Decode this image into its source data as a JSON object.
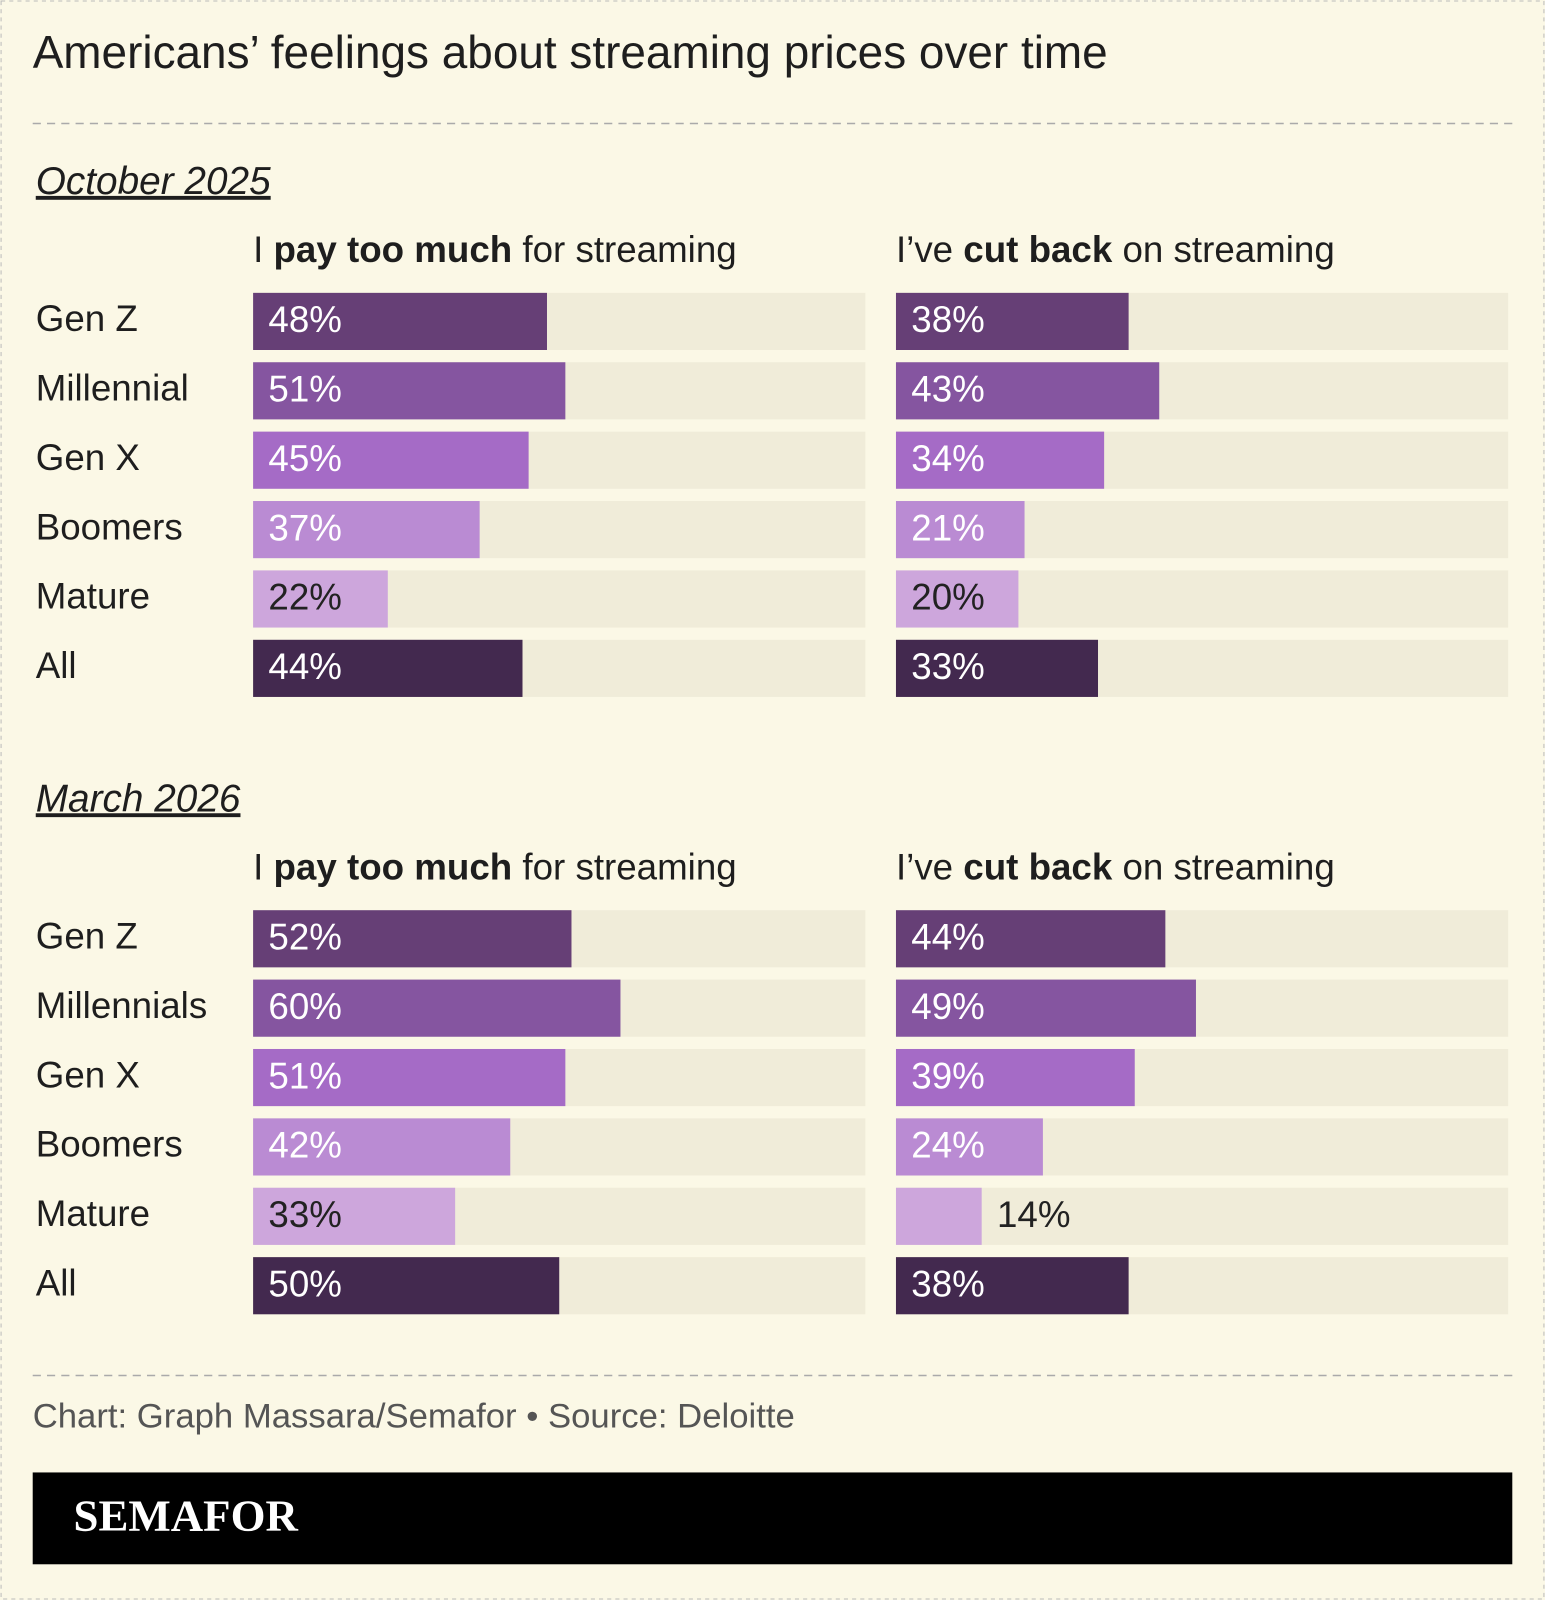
{
  "title": "Americans’ feelings about streaming prices over time",
  "source": "Chart: Graph Massara/Semafor • Source: Deloitte",
  "brand": "SEMAFOR",
  "chart_data": [
    {
      "type": "bar",
      "title": "October 2025",
      "categories": [
        "Gen Z",
        "Millennial",
        "Gen X",
        "Boomers",
        "Mature",
        "All"
      ],
      "colors": [
        "#663f76",
        "#8555a0",
        "#a56bc6",
        "#ba8bd3",
        "#cda6dc",
        "#43294f"
      ],
      "track_color": "#f0ecd9",
      "xlim": [
        0,
        100
      ],
      "panels": [
        {
          "title_parts": [
            {
              "text": "I "
            },
            {
              "text": "pay too much",
              "bold": true
            },
            {
              "text": " for streaming"
            }
          ],
          "values": [
            48,
            51,
            45,
            37,
            22,
            44
          ],
          "value_labels": [
            "48%",
            "51%",
            "45%",
            "37%",
            "22%",
            "44%"
          ]
        },
        {
          "title_parts": [
            {
              "text": "I’ve "
            },
            {
              "text": "cut back",
              "bold": true
            },
            {
              "text": " on streaming"
            }
          ],
          "values": [
            38,
            43,
            34,
            21,
            20,
            33
          ],
          "value_labels": [
            "38%",
            "43%",
            "34%",
            "21%",
            "20%",
            "33%"
          ]
        }
      ]
    },
    {
      "type": "bar",
      "title": "March 2026",
      "categories": [
        "Gen Z",
        "Millennials",
        "Gen X",
        "Boomers",
        "Mature",
        "All"
      ],
      "colors": [
        "#663f76",
        "#8555a0",
        "#a56bc6",
        "#ba8bd3",
        "#cda6dc",
        "#43294f"
      ],
      "track_color": "#f0ecd9",
      "xlim": [
        0,
        100
      ],
      "panels": [
        {
          "title_parts": [
            {
              "text": "I "
            },
            {
              "text": "pay too much",
              "bold": true
            },
            {
              "text": " for streaming"
            }
          ],
          "values": [
            52,
            60,
            51,
            42,
            33,
            50
          ],
          "value_labels": [
            "52%",
            "60%",
            "51%",
            "42%",
            "33%",
            "50%"
          ]
        },
        {
          "title_parts": [
            {
              "text": "I’ve "
            },
            {
              "text": "cut back",
              "bold": true
            },
            {
              "text": " on streaming"
            }
          ],
          "values": [
            44,
            49,
            39,
            24,
            14,
            38
          ],
          "value_labels": [
            "44%",
            "49%",
            "39%",
            "24%",
            "14%",
            "38%"
          ]
        }
      ]
    }
  ]
}
